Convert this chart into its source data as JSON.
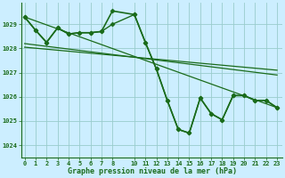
{
  "background_color": "#cceeff",
  "grid_color": "#99cccc",
  "line_color": "#1a6b1a",
  "xlabel": "Graphe pression niveau de la mer (hPa)",
  "ylim": [
    1023.5,
    1029.9
  ],
  "xlim": [
    -0.3,
    23.5
  ],
  "yticks": [
    1024,
    1025,
    1026,
    1027,
    1028,
    1029
  ],
  "xticks": [
    0,
    1,
    2,
    3,
    4,
    5,
    6,
    7,
    8,
    10,
    11,
    12,
    13,
    14,
    15,
    16,
    17,
    18,
    19,
    20,
    21,
    22,
    23
  ],
  "series": [
    {
      "x": [
        0,
        1,
        2,
        3,
        4,
        5,
        6,
        7,
        8,
        10,
        11,
        12,
        13,
        14,
        15,
        16,
        17,
        18,
        19,
        20,
        21,
        22,
        23
      ],
      "y": [
        1029.3,
        1028.75,
        1028.25,
        1028.85,
        1028.6,
        1028.65,
        1028.65,
        1028.7,
        1029.55,
        1029.4,
        1028.25,
        1027.15,
        1025.85,
        1024.65,
        1024.5,
        1025.95,
        1025.3,
        1025.05,
        1026.05,
        1026.05,
        1025.85,
        1025.85,
        1025.55
      ],
      "marker": "D",
      "markersize": 2.5,
      "linewidth": 1.2,
      "linestyle": "-"
    },
    {
      "x": [
        0,
        1,
        2,
        3,
        4,
        5,
        6,
        7,
        8,
        10,
        11,
        12,
        13,
        14,
        15,
        16,
        17,
        18,
        19,
        20,
        21,
        22,
        23
      ],
      "y": [
        1029.3,
        1028.75,
        1028.25,
        1028.85,
        1028.6,
        1028.65,
        1028.65,
        1028.7,
        1029.0,
        1029.4,
        1028.25,
        1027.15,
        1025.85,
        1024.65,
        1024.5,
        1025.95,
        1025.3,
        1025.05,
        1026.05,
        1026.05,
        1025.85,
        1025.85,
        1025.55
      ],
      "marker": "D",
      "markersize": 2.5,
      "linewidth": 1.0,
      "linestyle": "-"
    },
    {
      "x": [
        0,
        23
      ],
      "y": [
        1029.3,
        1025.55
      ],
      "marker": null,
      "linewidth": 0.9,
      "linestyle": "-"
    },
    {
      "x": [
        0,
        23
      ],
      "y": [
        1028.2,
        1026.9
      ],
      "marker": null,
      "linewidth": 0.9,
      "linestyle": "-"
    },
    {
      "x": [
        0,
        23
      ],
      "y": [
        1028.05,
        1027.1
      ],
      "marker": null,
      "linewidth": 0.9,
      "linestyle": "-"
    }
  ]
}
